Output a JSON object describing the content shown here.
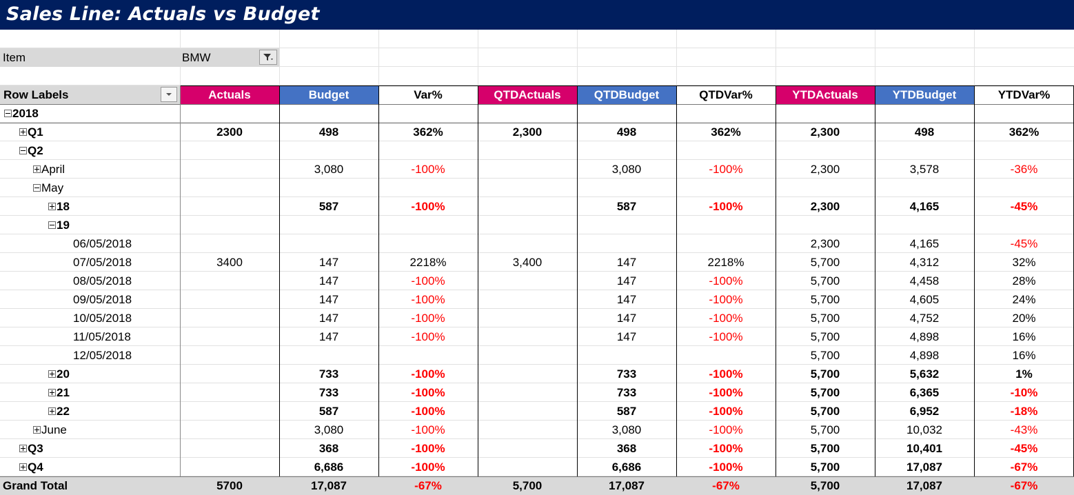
{
  "title": "Sales Line: Actuals vs Budget",
  "filter": {
    "label": "Item",
    "value": "BMW"
  },
  "headers": {
    "row_labels": "Row Labels",
    "cols": [
      "Actuals",
      "Budget",
      "Var%",
      "QTDActuals",
      "QTDBudget",
      "QTDVar%",
      "YTDActuals",
      "YTDBudget",
      "YTDVar%"
    ]
  },
  "header_colors": {
    "pink": "#d6006b",
    "blue": "#4472c4",
    "title_bg": "#001e5e",
    "negative": "#ff0000"
  },
  "rows": [
    {
      "label": "2018",
      "level": 0,
      "expander": "minus",
      "bold": true,
      "cells": [
        "",
        "",
        "",
        "",
        "",
        "",
        "",
        "",
        ""
      ]
    },
    {
      "label": "Q1",
      "level": 1,
      "expander": "plus",
      "bold": true,
      "cells": [
        "2300",
        "498",
        "362%",
        "2,300",
        "498",
        "362%",
        "2,300",
        "498",
        "362%"
      ]
    },
    {
      "label": "Q2",
      "level": 1,
      "expander": "minus",
      "bold": true,
      "cells": [
        "",
        "",
        "",
        "",
        "",
        "",
        "",
        "",
        ""
      ]
    },
    {
      "label": "April",
      "level": 2,
      "expander": "plus",
      "bold": false,
      "cells": [
        "",
        "3,080",
        "-100%",
        "",
        "3,080",
        "-100%",
        "2,300",
        "3,578",
        "-36%"
      ]
    },
    {
      "label": "May",
      "level": 2,
      "expander": "minus",
      "bold": false,
      "cells": [
        "",
        "",
        "",
        "",
        "",
        "",
        "",
        "",
        ""
      ]
    },
    {
      "label": "18",
      "level": 3,
      "expander": "plus",
      "bold": true,
      "cells": [
        "",
        "587",
        "-100%",
        "",
        "587",
        "-100%",
        "2,300",
        "4,165",
        "-45%"
      ]
    },
    {
      "label": "19",
      "level": 3,
      "expander": "minus",
      "bold": true,
      "cells": [
        "",
        "",
        "",
        "",
        "",
        "",
        "",
        "",
        ""
      ]
    },
    {
      "label": "06/05/2018",
      "level": 4,
      "expander": "",
      "bold": false,
      "cells": [
        "",
        "",
        "",
        "",
        "",
        "",
        "2,300",
        "4,165",
        "-45%"
      ]
    },
    {
      "label": "07/05/2018",
      "level": 4,
      "expander": "",
      "bold": false,
      "cells": [
        "3400",
        "147",
        "2218%",
        "3,400",
        "147",
        "2218%",
        "5,700",
        "4,312",
        "32%"
      ]
    },
    {
      "label": "08/05/2018",
      "level": 4,
      "expander": "",
      "bold": false,
      "cells": [
        "",
        "147",
        "-100%",
        "",
        "147",
        "-100%",
        "5,700",
        "4,458",
        "28%"
      ]
    },
    {
      "label": "09/05/2018",
      "level": 4,
      "expander": "",
      "bold": false,
      "cells": [
        "",
        "147",
        "-100%",
        "",
        "147",
        "-100%",
        "5,700",
        "4,605",
        "24%"
      ]
    },
    {
      "label": "10/05/2018",
      "level": 4,
      "expander": "",
      "bold": false,
      "cells": [
        "",
        "147",
        "-100%",
        "",
        "147",
        "-100%",
        "5,700",
        "4,752",
        "20%"
      ]
    },
    {
      "label": "11/05/2018",
      "level": 4,
      "expander": "",
      "bold": false,
      "cells": [
        "",
        "147",
        "-100%",
        "",
        "147",
        "-100%",
        "5,700",
        "4,898",
        "16%"
      ]
    },
    {
      "label": "12/05/2018",
      "level": 4,
      "expander": "",
      "bold": false,
      "cells": [
        "",
        "",
        "",
        "",
        "",
        "",
        "5,700",
        "4,898",
        "16%"
      ]
    },
    {
      "label": "20",
      "level": 3,
      "expander": "plus",
      "bold": true,
      "cells": [
        "",
        "733",
        "-100%",
        "",
        "733",
        "-100%",
        "5,700",
        "5,632",
        "1%"
      ]
    },
    {
      "label": "21",
      "level": 3,
      "expander": "plus",
      "bold": true,
      "cells": [
        "",
        "733",
        "-100%",
        "",
        "733",
        "-100%",
        "5,700",
        "6,365",
        "-10%"
      ]
    },
    {
      "label": "22",
      "level": 3,
      "expander": "plus",
      "bold": true,
      "cells": [
        "",
        "587",
        "-100%",
        "",
        "587",
        "-100%",
        "5,700",
        "6,952",
        "-18%"
      ]
    },
    {
      "label": "June",
      "level": 2,
      "expander": "plus",
      "bold": false,
      "cells": [
        "",
        "3,080",
        "-100%",
        "",
        "3,080",
        "-100%",
        "5,700",
        "10,032",
        "-43%"
      ]
    },
    {
      "label": "Q3",
      "level": 1,
      "expander": "plus",
      "bold": true,
      "cells": [
        "",
        "368",
        "-100%",
        "",
        "368",
        "-100%",
        "5,700",
        "10,401",
        "-45%"
      ]
    },
    {
      "label": "Q4",
      "level": 1,
      "expander": "plus",
      "bold": true,
      "cells": [
        "",
        "6,686",
        "-100%",
        "",
        "6,686",
        "-100%",
        "5,700",
        "17,087",
        "-67%"
      ]
    }
  ],
  "grand_total": {
    "label": "Grand Total",
    "cells": [
      "5700",
      "17,087",
      "-67%",
      "5,700",
      "17,087",
      "-67%",
      "5,700",
      "17,087",
      "-67%"
    ]
  }
}
